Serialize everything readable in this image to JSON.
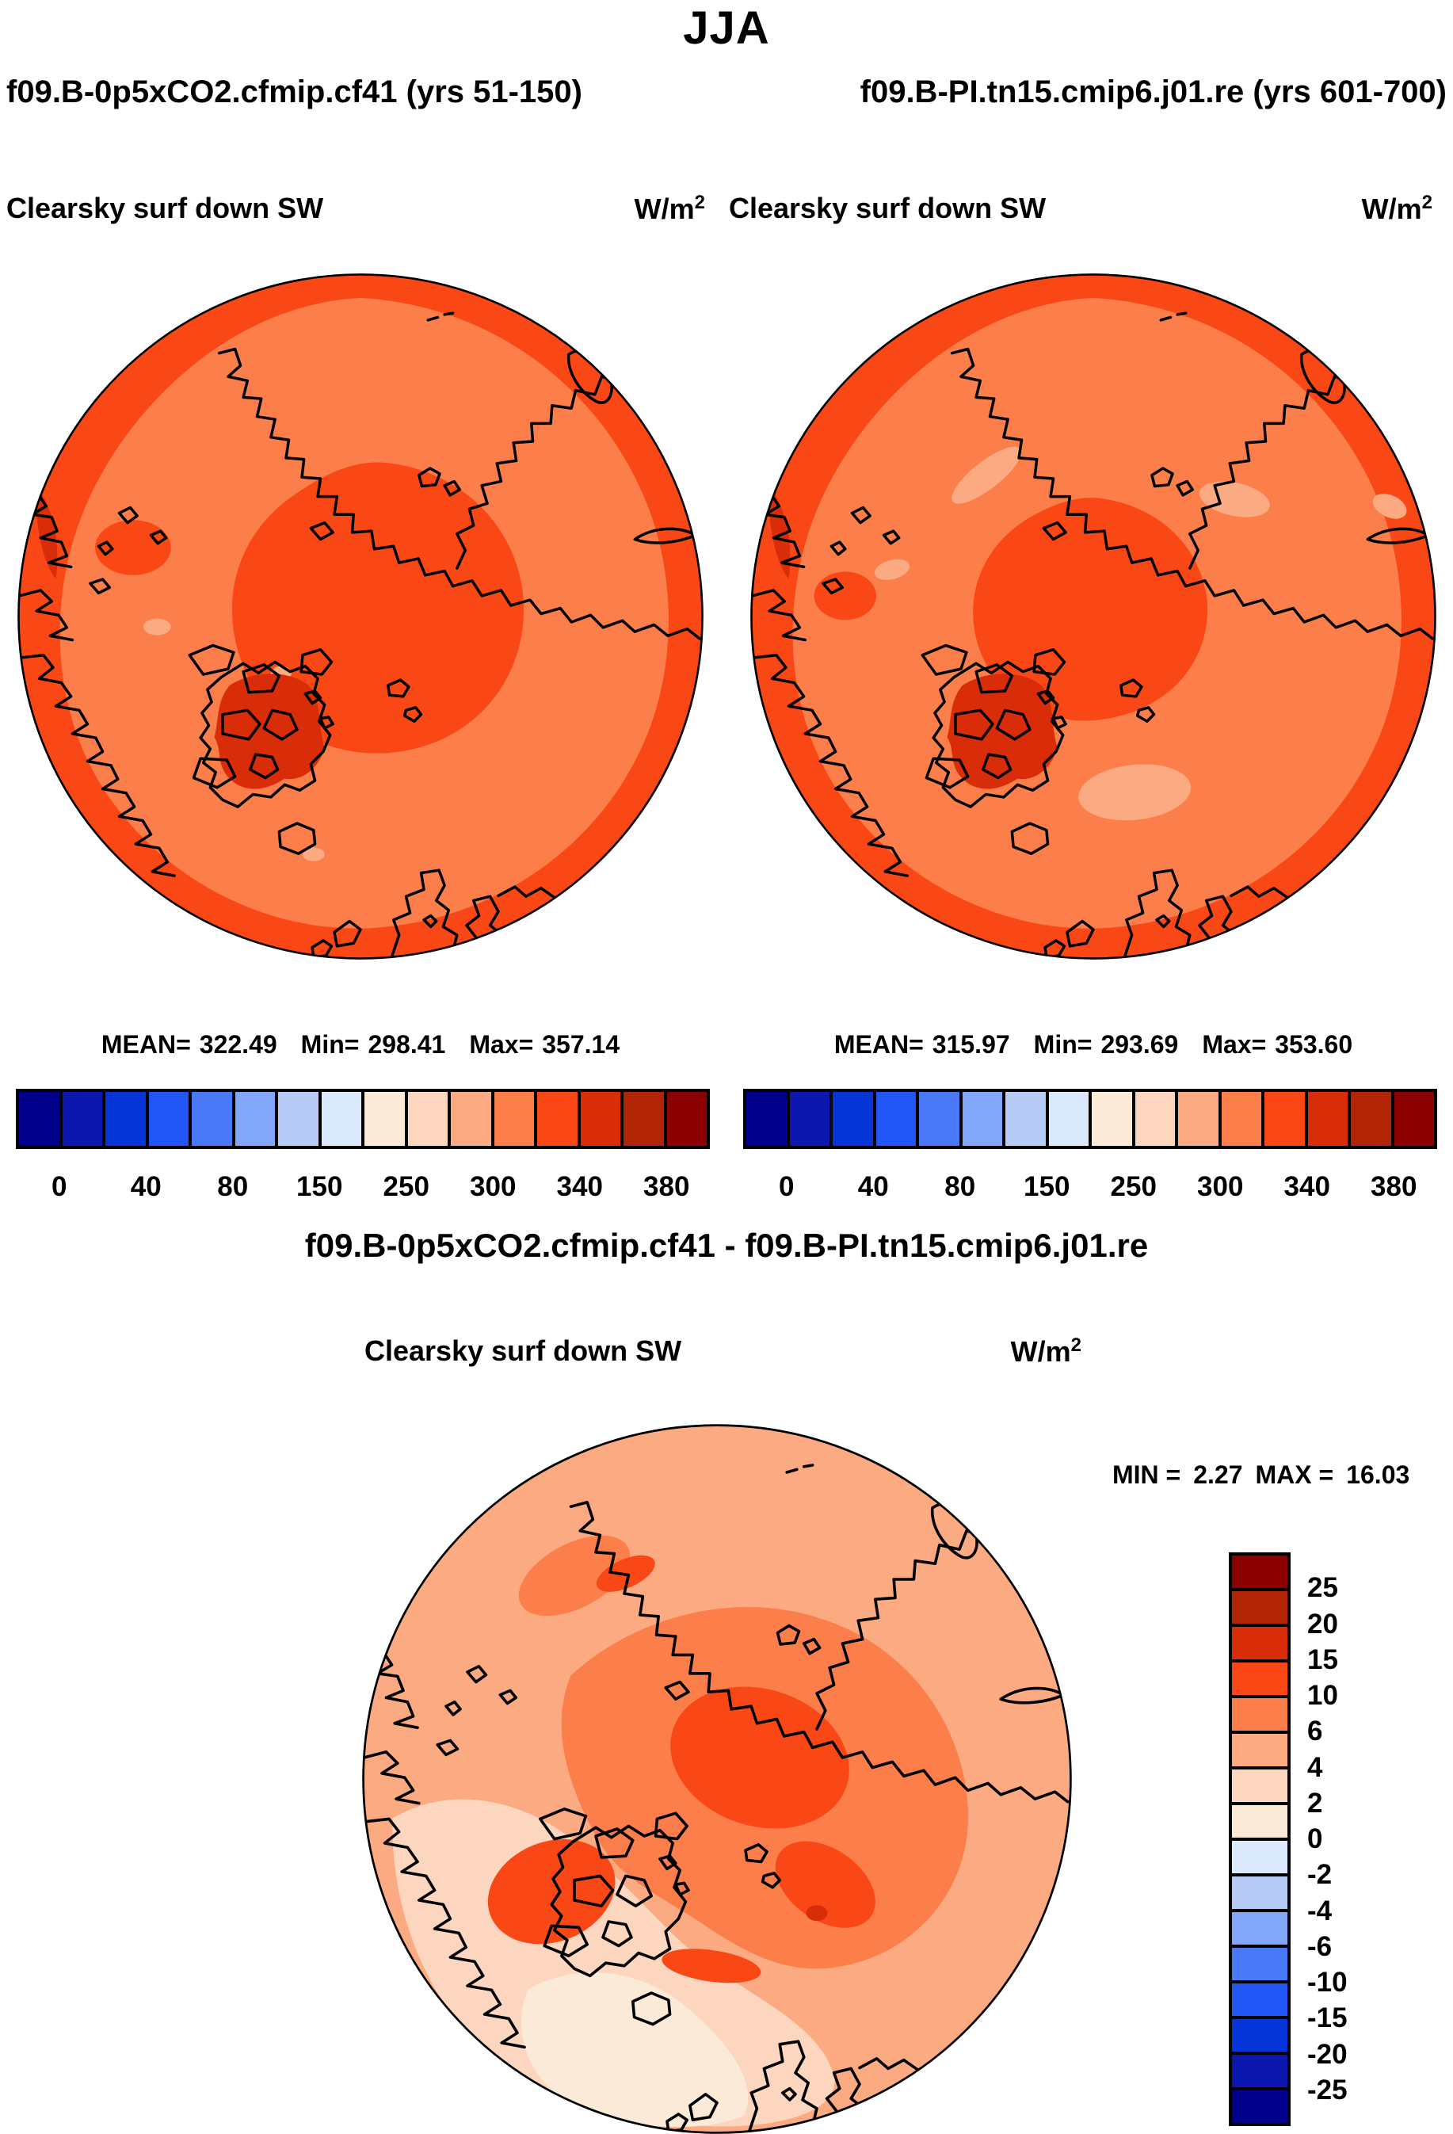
{
  "title": "JJA",
  "header": {
    "run_left": "f09.B-0p5xCO2.cfmip.cf41 (yrs 51-150)",
    "run_right": "f09.B-PI.tn15.cmip6.j01.re (yrs 601-700)"
  },
  "panels": [
    {
      "label": "Clearsky surf down SW",
      "units_base": "W/m",
      "units_exp": "2",
      "stats": {
        "mean_label": "MEAN=",
        "mean": "322.49",
        "min_label": "Min=",
        "min": "298.41",
        "max_label": "Max=",
        "max": "357.14"
      }
    },
    {
      "label": "Clearsky surf down SW",
      "units_base": "W/m",
      "units_exp": "2",
      "stats": {
        "mean_label": "MEAN=",
        "mean": "315.97",
        "min_label": "Min=",
        "min": "293.69",
        "max_label": "Max=",
        "max": "353.60"
      }
    }
  ],
  "diff": {
    "title": "f09.B-0p5xCO2.cfmip.cf41 - f09.B-PI.tn15.cmip6.j01.re",
    "label": "Clearsky surf down SW",
    "units_base": "W/m",
    "units_exp": "2",
    "min_label": "MIN =",
    "min": "2.27",
    "max_label": "MAX =",
    "max": "16.03"
  },
  "colorbar": {
    "palette": [
      "#00008B",
      "#0B17AF",
      "#0534D8",
      "#2255F5",
      "#4A79F8",
      "#82A6FA",
      "#B6CBF6",
      "#DAE9FB",
      "#FCEAD9",
      "#FCD6BE",
      "#FCAA82",
      "#FC7E4B",
      "#F94716",
      "#D92C08",
      "#B22406",
      "#8B0000"
    ],
    "tick_labels": [
      "0",
      "40",
      "80",
      "150",
      "250",
      "300",
      "340",
      "380"
    ],
    "tick_boundaries": [
      1,
      3,
      5,
      7,
      9,
      11,
      13,
      15
    ]
  },
  "diff_colorbar": {
    "tick_labels": [
      "25",
      "20",
      "15",
      "10",
      "6",
      "4",
      "2",
      "0",
      "-2",
      "-4",
      "-6",
      "-10",
      "-15",
      "-20",
      "-25"
    ]
  },
  "chart_data": [
    {
      "type": "heatmap",
      "subtype": "north-polar-stereographic-filled-contour-map",
      "season": "JJA",
      "run": "f09.B-0p5xCO2.cfmip.cf41",
      "years": "51-150",
      "variable": "Clearsky surf down SW",
      "units": "W/m2",
      "mean": 322.49,
      "min": 298.41,
      "max": 357.14,
      "contour_level_labels": [
        0,
        40,
        80,
        150,
        250,
        300,
        340,
        380
      ],
      "palette_direction": "blue-to-red, 16 boxes",
      "legend_position": "bottom"
    },
    {
      "type": "heatmap",
      "subtype": "north-polar-stereographic-filled-contour-map",
      "season": "JJA",
      "run": "f09.B-PI.tn15.cmip6.j01.re",
      "years": "601-700",
      "variable": "Clearsky surf down SW",
      "units": "W/m2",
      "mean": 315.97,
      "min": 293.69,
      "max": 353.6,
      "contour_level_labels": [
        0,
        40,
        80,
        150,
        250,
        300,
        340,
        380
      ],
      "palette_direction": "blue-to-red, 16 boxes",
      "legend_position": "bottom"
    },
    {
      "type": "heatmap",
      "subtype": "north-polar-stereographic-filled-contour-map",
      "season": "JJA",
      "run": "f09.B-0p5xCO2.cfmip.cf41 - f09.B-PI.tn15.cmip6.j01.re",
      "variable": "Clearsky surf down SW",
      "units": "W/m2",
      "min": 2.27,
      "max": 16.03,
      "contour_level_labels": [
        25,
        20,
        15,
        10,
        6,
        4,
        2,
        0,
        -2,
        -4,
        -6,
        -10,
        -15,
        -20,
        -25
      ],
      "palette_direction": "red-at-top-to-blue-at-bottom, 16 boxes",
      "legend_position": "right"
    }
  ]
}
